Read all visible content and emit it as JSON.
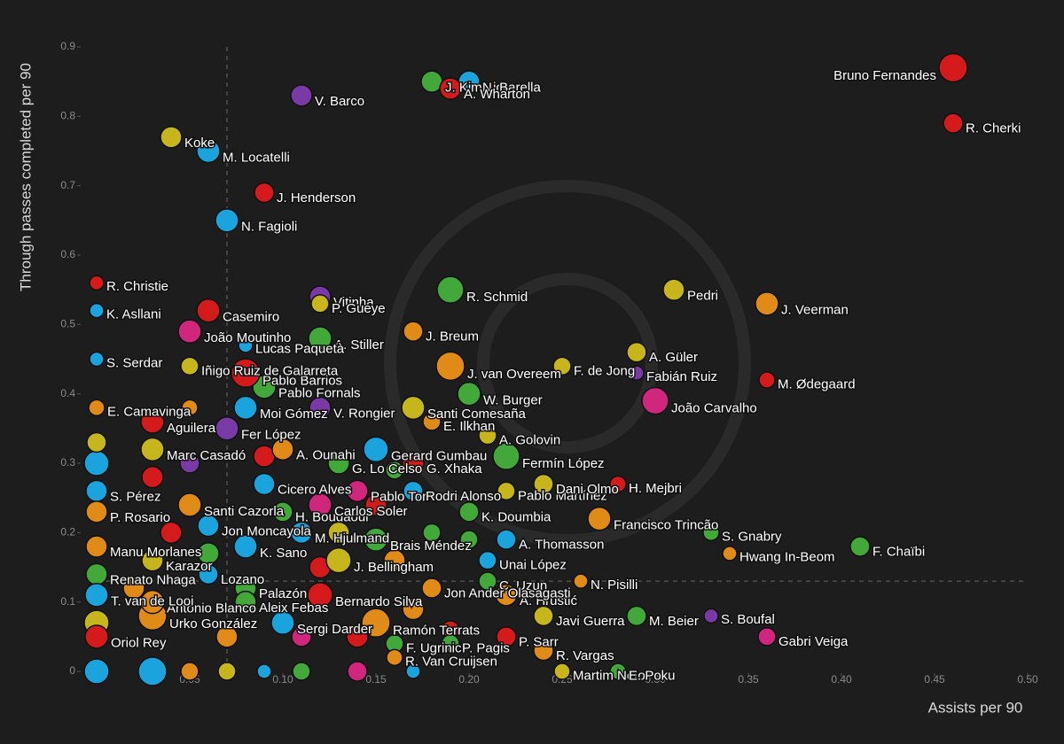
{
  "chart_data": {
    "type": "scatter",
    "x_label": "Assists per 90",
    "y_label": "Through passes completed per 90",
    "xlim": [
      0,
      0.5
    ],
    "ylim": [
      0,
      0.9
    ],
    "xticks": [
      0,
      {
        "value": 0.05,
        "label": "0.05"
      },
      {
        "value": 0.1,
        "label": "0.10"
      },
      {
        "value": 0.15,
        "label": "0.15"
      },
      {
        "value": 0.2,
        "label": "0.20"
      },
      {
        "value": 0.25,
        "label": "0.25"
      },
      {
        "value": 0.3,
        "label": "0.30"
      },
      {
        "value": 0.35,
        "label": "0.35"
      },
      {
        "value": 0.4,
        "label": "0.40"
      },
      {
        "value": 0.45,
        "label": "0.45"
      },
      {
        "value": 0.5,
        "label": "0.50"
      }
    ],
    "yticks": [
      0,
      0.1,
      0.2,
      0.3,
      0.4,
      0.5,
      0.6,
      0.7,
      0.8,
      0.9
    ],
    "ref_x": 0.07,
    "ref_y": 0.13,
    "labels": [
      null,
      null,
      null,
      null,
      null,
      null,
      null,
      null,
      null,
      null,
      null,
      null,
      null,
      null,
      null,
      null,
      null,
      null,
      null,
      null,
      null,
      null,
      null,
      null,
      null,
      null,
      null,
      null,
      null,
      null,
      "Bruno Fernandes",
      "R. Cherki",
      "J. Kimmich",
      "N. Barella",
      "A. Wharton",
      "V. Barco",
      "Koke",
      "M. Locatelli",
      "J. Henderson",
      "N. Fagioli",
      "R. Christie",
      "K. Asllani",
      "S. Serdar",
      "Casemiro",
      "Vitinha",
      "P. Gueye",
      "A. Stiller",
      "R. Schmid",
      "Pedri",
      "J. Veerman",
      "J. Breum",
      "J. van Overeem",
      "F. de Jong",
      "A. Güler",
      "Fabián Ruiz",
      "M. Ødegaard",
      "João Carvalho",
      "W. Burger",
      "Santi Comesaña",
      "E. Ilkhan",
      "A. Golovin",
      "Gerard Gumbau",
      "Fermín López",
      "G. Xhaka",
      "G. Lo Celso",
      "A. Ounahi",
      "Pablo Fornals",
      "V. Rongier",
      "Moi Gómez",
      "Fer López",
      "Pablo Barrios",
      "Lucas Paquetà",
      "João Moutinho",
      "Pablo Torre",
      "Rodri Alonso",
      "Pablo Martínez",
      "Dani Olmo",
      "H. Mejbri",
      "Francisco Trincão",
      "K. Doumbia",
      "Cicero Alves",
      "H. Boudaoui",
      "Carlos Soler",
      "S. Gnabry",
      "F. Chaïbi",
      "Hwang In-Beom",
      "A. Thomasson",
      "Brais Méndez",
      "M. Hjulmand",
      "K. Sano",
      "Jon Moncayola",
      "J. Bellingham",
      "Unai López",
      "C. Uzun",
      "N. Pisilli",
      "A. Hrustić",
      "Bernardo Silva",
      "Palazón",
      "Lozano",
      "Aleix Febas",
      "Jon Ander Olasagasti",
      "Ramón Terrats",
      "Sergi Darder",
      "Javi Guerra",
      "M. Beier",
      "S. Boufal",
      "Gabri Veiga",
      "P. Sarr",
      "P. Pagis",
      "F. Ugrinic",
      "R. Vargas",
      "R. Van Cruijsen",
      "Martim Neto",
      "E. Poku",
      "Urko González",
      "Antonio Blanco",
      "Oriol Rey",
      "E. Camavinga",
      "Aguilera",
      "Marc Casadó",
      "S. Pérez",
      "P. Rosario",
      "Manu Morlanes",
      "Renato Nhaga",
      "T. van de Looi",
      "Santi Cazorla",
      "Iñigo Ruiz de Galarreta",
      "Karazor"
    ],
    "x": [
      0,
      0.03,
      0.05,
      0.07,
      0.09,
      0.11,
      0.14,
      0.17,
      0,
      0,
      0,
      0.03,
      0.05,
      0.09,
      0.13,
      0.14,
      0.11,
      0.07,
      0.04,
      0.18,
      0.2,
      0.16,
      0.17,
      0.19,
      0.05,
      0.15,
      0.16,
      0.02,
      0.06,
      0.12,
      0.46,
      0.46,
      0.18,
      0.2,
      0.19,
      0.11,
      0.04,
      0.06,
      0.09,
      0.07,
      0,
      0,
      0,
      0.06,
      0.12,
      0.12,
      0.12,
      0.19,
      0.31,
      0.36,
      0.17,
      0.19,
      0.25,
      0.29,
      0.29,
      0.36,
      0.3,
      0.2,
      0.17,
      0.18,
      0.21,
      0.15,
      0.22,
      0.17,
      0.13,
      0.1,
      0.09,
      0.12,
      0.08,
      0.07,
      0.08,
      0.08,
      0.05,
      0.14,
      0.17,
      0.22,
      0.24,
      0.28,
      0.27,
      0.2,
      0.09,
      0.1,
      0.12,
      0.33,
      0.41,
      0.34,
      0.22,
      0.15,
      0.11,
      0.08,
      0.06,
      0.13,
      0.21,
      0.21,
      0.26,
      0.22,
      0.12,
      0.08,
      0.06,
      0.08,
      0.18,
      0.15,
      0.1,
      0.24,
      0.29,
      0.33,
      0.36,
      0.22,
      0.19,
      0.16,
      0.24,
      0.16,
      0.25,
      0.28,
      0.03,
      0.03,
      0,
      0,
      0.03,
      0.03,
      0,
      0,
      0,
      0,
      0,
      0.05,
      0.05,
      0.03
    ],
    "values": [
      0,
      0,
      0,
      0,
      0,
      0,
      0,
      0,
      0.3,
      0.33,
      0.07,
      0.28,
      0.3,
      0.31,
      0.2,
      0.05,
      0.05,
      0.05,
      0.2,
      0.2,
      0.19,
      0.16,
      0.09,
      0.06,
      0.38,
      0.24,
      0.29,
      0.12,
      0.17,
      0.15,
      0.87,
      0.79,
      0.85,
      0.85,
      0.84,
      0.83,
      0.77,
      0.75,
      0.69,
      0.65,
      0.56,
      0.52,
      0.45,
      0.52,
      0.54,
      0.53,
      0.48,
      0.55,
      0.55,
      0.53,
      0.49,
      0.44,
      0.44,
      0.46,
      0.43,
      0.42,
      0.39,
      0.4,
      0.38,
      0.36,
      0.34,
      0.32,
      0.31,
      0.3,
      0.3,
      0.32,
      0.41,
      0.38,
      0.38,
      0.35,
      0.43,
      0.47,
      0.49,
      0.26,
      0.26,
      0.26,
      0.27,
      0.27,
      0.22,
      0.23,
      0.27,
      0.23,
      0.24,
      0.2,
      0.18,
      0.17,
      0.19,
      0.19,
      0.2,
      0.18,
      0.21,
      0.16,
      0.16,
      0.13,
      0.13,
      0.11,
      0.11,
      0.12,
      0.14,
      0.1,
      0.12,
      0.07,
      0.07,
      0.08,
      0.08,
      0.08,
      0.05,
      0.05,
      0.04,
      0.04,
      0.03,
      0.02,
      0,
      0,
      0.08,
      0.1,
      0.05,
      0.38,
      0.36,
      0.32,
      0.26,
      0.23,
      0.18,
      0.14,
      0.11,
      0.24,
      0.44,
      0.16
    ],
    "sizes": [
      14,
      16,
      10,
      10,
      8,
      10,
      11,
      8,
      14,
      11,
      14,
      12,
      11,
      12,
      12,
      12,
      11,
      12,
      12,
      10,
      10,
      12,
      12,
      10,
      9,
      12,
      10,
      12,
      12,
      12,
      16,
      11,
      12,
      12,
      12,
      12,
      12,
      13,
      11,
      13,
      8,
      8,
      8,
      13,
      12,
      10,
      13,
      15,
      12,
      13,
      11,
      16,
      10,
      11,
      8,
      9,
      15,
      13,
      13,
      10,
      10,
      14,
      15,
      12,
      12,
      12,
      13,
      12,
      13,
      13,
      16,
      8,
      13,
      12,
      11,
      10,
      11,
      9,
      13,
      11,
      12,
      11,
      13,
      9,
      11,
      8,
      11,
      13,
      12,
      13,
      12,
      14,
      10,
      10,
      8,
      12,
      14,
      12,
      11,
      12,
      11,
      16,
      13,
      11,
      11,
      8,
      10,
      11,
      10,
      10,
      11,
      9,
      9,
      9,
      16,
      13,
      13,
      9,
      13,
      13,
      12,
      12,
      12,
      12,
      13,
      13,
      10,
      12
    ],
    "colors": [
      "#1aa3dc",
      "#1aa3dc",
      "#e08a17",
      "#c6b51c",
      "#1aa3dc",
      "#43a83a",
      "#d0267e",
      "#1aa3dc",
      "#1aa3dc",
      "#c6b51c",
      "#c6b51c",
      "#d41a1a",
      "#7a3aa6",
      "#d41a1a",
      "#c6b51c",
      "#d41a1a",
      "#d0267e",
      "#e08a17",
      "#d41a1a",
      "#43a83a",
      "#43a83a",
      "#e08a17",
      "#e08a17",
      "#d41a1a",
      "#e08a17",
      "#d41a1a",
      "#43a83a",
      "#e08a17",
      "#43a83a",
      "#d41a1a",
      "#d41a1a",
      "#d41a1a",
      "#43a83a",
      "#1aa3dc",
      "#d41a1a",
      "#7a3aa6",
      "#c6b51c",
      "#1aa3dc",
      "#d41a1a",
      "#1aa3dc",
      "#d41a1a",
      "#1aa3dc",
      "#1aa3dc",
      "#d41a1a",
      "#7a3aa6",
      "#c6b51c",
      "#43a83a",
      "#43a83a",
      "#c6b51c",
      "#e08a17",
      "#e08a17",
      "#e08a17",
      "#c6b51c",
      "#c6b51c",
      "#7a3aa6",
      "#d41a1a",
      "#d0267e",
      "#43a83a",
      "#c6b51c",
      "#e08a17",
      "#c6b51c",
      "#1aa3dc",
      "#43a83a",
      "#d41a1a",
      "#43a83a",
      "#e08a17",
      "#43a83a",
      "#7a3aa6",
      "#1aa3dc",
      "#7a3aa6",
      "#d41a1a",
      "#1aa3dc",
      "#d0267e",
      "#d0267e",
      "#1aa3dc",
      "#c6b51c",
      "#c6b51c",
      "#d41a1a",
      "#e08a17",
      "#43a83a",
      "#1aa3dc",
      "#43a83a",
      "#d0267e",
      "#43a83a",
      "#43a83a",
      "#e08a17",
      "#1aa3dc",
      "#43a83a",
      "#1aa3dc",
      "#1aa3dc",
      "#1aa3dc",
      "#c6b51c",
      "#1aa3dc",
      "#43a83a",
      "#e08a17",
      "#e08a17",
      "#d41a1a",
      "#43a83a",
      "#1aa3dc",
      "#43a83a",
      "#e08a17",
      "#e08a17",
      "#1aa3dc",
      "#c6b51c",
      "#43a83a",
      "#7a3aa6",
      "#d0267e",
      "#d41a1a",
      "#43a83a",
      "#43a83a",
      "#e08a17",
      "#e08a17",
      "#c6b51c",
      "#43a83a",
      "#e08a17",
      "#e08a17",
      "#d41a1a",
      "#e08a17",
      "#d41a1a",
      "#c6b51c",
      "#1aa3dc",
      "#e08a17",
      "#e08a17",
      "#43a83a",
      "#1aa3dc",
      "#e08a17",
      "#c6b51c",
      "#c6b51c"
    ]
  }
}
